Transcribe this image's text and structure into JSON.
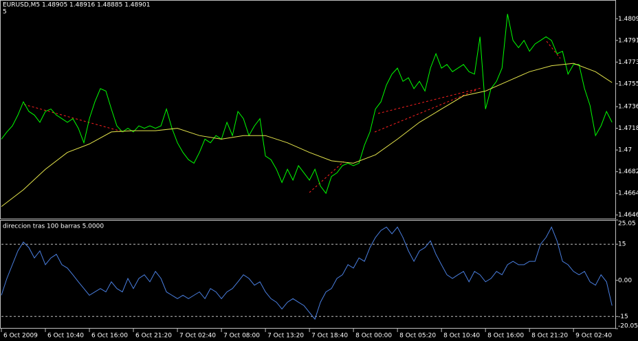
{
  "chart_data": [
    {
      "type": "line",
      "title": "EURUSD,M5  1.48905 1.48916 1.48885 1.48901",
      "subtitle": "5",
      "xlim": [
        0,
        111.6
      ],
      "ylim": [
        1.4643,
        1.4824
      ],
      "yticks": [
        1.4809,
        1.4791,
        1.4773,
        1.4755,
        1.4736,
        1.4718,
        1.47,
        1.4682,
        1.4664,
        1.4646
      ],
      "series": [
        {
          "color": "#00ff00",
          "values": [
            1.4709,
            1.4715,
            1.472,
            1.4729,
            1.474,
            1.4732,
            1.4729,
            1.4723,
            1.4732,
            1.4734,
            1.4729,
            1.4726,
            1.4723,
            1.4726,
            1.4718,
            1.4706,
            1.4726,
            1.474,
            1.4751,
            1.4749,
            1.4734,
            1.472,
            1.4715,
            1.4718,
            1.4715,
            1.472,
            1.4718,
            1.472,
            1.4718,
            1.472,
            1.4734,
            1.4718,
            1.4706,
            1.4698,
            1.4692,
            1.4689,
            1.4698,
            1.4709,
            1.4706,
            1.4712,
            1.4709,
            1.4723,
            1.4712,
            1.4732,
            1.4726,
            1.4712,
            1.472,
            1.4726,
            1.4695,
            1.4692,
            1.4684,
            1.4673,
            1.4684,
            1.4675,
            1.4687,
            1.4681,
            1.4675,
            1.4684,
            1.467,
            1.4664,
            1.4678,
            1.4681,
            1.4687,
            1.4689,
            1.4687,
            1.4689,
            1.4704,
            1.4715,
            1.4734,
            1.474,
            1.4754,
            1.4763,
            1.4768,
            1.4757,
            1.476,
            1.4751,
            1.4757,
            1.4749,
            1.4768,
            1.478,
            1.4768,
            1.4771,
            1.4765,
            1.4768,
            1.4771,
            1.4765,
            1.4763,
            1.4794,
            1.4734,
            1.4751,
            1.4757,
            1.4768,
            1.4813,
            1.4791,
            1.4785,
            1.4791,
            1.4782,
            1.4788,
            1.4791,
            1.4794,
            1.4791,
            1.478,
            1.4782,
            1.4763,
            1.4771,
            1.4771,
            1.4751,
            1.4737,
            1.4712,
            1.472,
            1.4732,
            1.4723
          ]
        },
        {
          "color": "#e6e64c",
          "x": [
            0,
            4,
            8,
            12,
            16,
            20,
            24,
            28,
            32,
            36,
            40,
            44,
            48,
            52,
            56,
            60,
            64,
            68,
            72,
            76,
            80,
            84,
            88,
            92,
            96,
            100,
            104,
            108,
            111
          ],
          "values": [
            1.4653,
            1.4667,
            1.4684,
            1.4698,
            1.4705,
            1.4715,
            1.4716,
            1.4716,
            1.4718,
            1.4712,
            1.4709,
            1.4712,
            1.4712,
            1.4706,
            1.4698,
            1.4691,
            1.4689,
            1.4696,
            1.4709,
            1.4723,
            1.4734,
            1.4745,
            1.4749,
            1.4757,
            1.4765,
            1.477,
            1.4772,
            1.4765,
            1.4756
          ]
        }
      ]
    },
    {
      "type": "line",
      "title": "direccion tras 100 barras 5.0000",
      "xlim": [
        0,
        111.6
      ],
      "ylim": [
        -20.05,
        25.05
      ],
      "yticks": [
        25.05,
        15,
        {
          "value": 0,
          "label": "0.00"
        },
        -15,
        -20.05
      ],
      "levels": [
        15,
        -15
      ],
      "xticks": [
        {
          "value": 0,
          "label": "6 Oct 2009"
        },
        {
          "value": 8,
          "label": "6 Oct 10:40"
        },
        {
          "value": 16,
          "label": "6 Oct 16:00"
        },
        {
          "value": 24,
          "label": "6 Oct 21:20"
        },
        {
          "value": 32,
          "label": "7 Oct 02:40"
        },
        {
          "value": 40,
          "label": "7 Oct 08:00"
        },
        {
          "value": 48,
          "label": "7 Oct 13:20"
        },
        {
          "value": 56,
          "label": "7 Oct 18:40"
        },
        {
          "value": 64,
          "label": "8 Oct 00:00"
        },
        {
          "value": 72,
          "label": "8 Oct 05:20"
        },
        {
          "value": 80,
          "label": "8 Oct 10:40"
        },
        {
          "value": 88,
          "label": "8 Oct 16:00"
        },
        {
          "value": 96,
          "label": "8 Oct 21:20"
        },
        {
          "value": 104,
          "label": "9 Oct 02:40"
        }
      ],
      "series": [
        {
          "color": "#4a7fe0",
          "values": [
            -6.2,
            0.8,
            6.5,
            12.2,
            15.9,
            13.6,
            9.3,
            12.2,
            6.5,
            9.3,
            10.8,
            6.5,
            5.1,
            2.3,
            -0.6,
            -3.4,
            -6.2,
            -4.8,
            -3.4,
            -4.8,
            -0.6,
            -3.4,
            -4.8,
            0.8,
            -3.4,
            0.8,
            2.3,
            -0.6,
            3.7,
            0.8,
            -4.8,
            -6.2,
            -7.6,
            -6.2,
            -7.6,
            -6.2,
            -4.8,
            -7.6,
            -3.4,
            -4.8,
            -7.6,
            -4.8,
            -3.4,
            -0.6,
            2.3,
            0.8,
            -2.0,
            -0.6,
            -4.8,
            -7.6,
            -9.1,
            -11.9,
            -9.1,
            -7.6,
            -9.1,
            -10.5,
            -13.3,
            -16.1,
            -9.1,
            -4.8,
            -3.4,
            0.8,
            2.3,
            6.5,
            5.1,
            9.3,
            7.9,
            13.6,
            17.8,
            20.7,
            22.1,
            19.3,
            22.1,
            17.8,
            12.2,
            7.9,
            12.2,
            13.6,
            16.4,
            10.8,
            6.5,
            2.3,
            0.8,
            2.3,
            3.7,
            -0.6,
            3.7,
            2.3,
            -0.6,
            0.8,
            3.7,
            2.3,
            6.5,
            7.9,
            6.5,
            6.5,
            7.9,
            7.9,
            15.0,
            17.8,
            22.1,
            16.4,
            7.9,
            6.5,
            3.7,
            2.3,
            3.7,
            -0.6,
            -2.0,
            2.3,
            -0.6,
            -10.5
          ]
        }
      ]
    }
  ]
}
